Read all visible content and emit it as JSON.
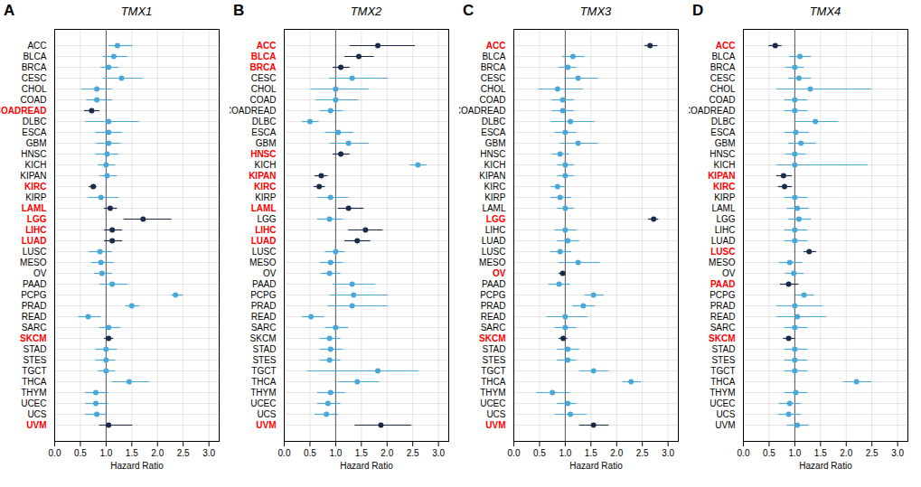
{
  "chart_data": [
    {
      "type": "forest",
      "title": "TMX1",
      "panel_label": "A",
      "x_label": "Hazard Ratio",
      "categories": [
        "ACC",
        "BLCA",
        "BRCA",
        "CESC",
        "CHOL",
        "COAD",
        "COADREAD",
        "DLBC",
        "ESCA",
        "GBM",
        "HNSC",
        "KICH",
        "KIPAN",
        "KIRC",
        "KIRP",
        "LAML",
        "LGG",
        "LIHC",
        "LUAD",
        "LUSC",
        "MESO",
        "OV",
        "PAAD",
        "PCPG",
        "PRAD",
        "READ",
        "SARC",
        "SKCM",
        "STAD",
        "STES",
        "TGCT",
        "THCA",
        "THYM",
        "UCEC",
        "UCS",
        "UVM"
      ],
      "values": [
        1.22,
        1.15,
        1.05,
        1.3,
        0.82,
        0.82,
        0.72,
        1.05,
        1.05,
        1.05,
        1.02,
        1.0,
        1.02,
        0.75,
        0.9,
        1.08,
        1.72,
        1.12,
        1.12,
        0.88,
        0.9,
        0.92,
        1.12,
        2.35,
        1.5,
        0.65,
        1.05,
        1.05,
        1.0,
        1.0,
        1.0,
        1.45,
        0.8,
        0.8,
        0.82,
        1.05
      ],
      "lo": [
        1.05,
        0.95,
        0.9,
        0.95,
        0.52,
        0.62,
        0.58,
        0.6,
        0.8,
        0.82,
        0.8,
        0.85,
        0.88,
        0.67,
        0.65,
        0.97,
        1.35,
        0.97,
        0.97,
        0.67,
        0.72,
        0.77,
        0.88,
        2.28,
        1.38,
        0.47,
        0.87,
        0.97,
        0.8,
        0.8,
        0.85,
        1.12,
        0.6,
        0.6,
        0.6,
        0.87
      ],
      "hi": [
        1.52,
        1.42,
        1.25,
        1.72,
        1.12,
        1.12,
        0.88,
        1.65,
        1.32,
        1.28,
        1.25,
        1.18,
        1.22,
        0.82,
        1.25,
        1.22,
        2.28,
        1.32,
        1.32,
        1.12,
        1.15,
        1.12,
        1.42,
        2.5,
        1.65,
        0.9,
        1.28,
        1.15,
        1.22,
        1.18,
        1.18,
        1.85,
        1.05,
        1.05,
        1.0,
        1.52
      ],
      "colors": [
        "#4aa8d8",
        "#4aa8d8",
        "#4aa8d8",
        "#4aa8d8",
        "#4aa8d8",
        "#4aa8d8",
        "#1a2a4a",
        "#4aa8d8",
        "#4aa8d8",
        "#4aa8d8",
        "#4aa8d8",
        "#4aa8d8",
        "#4aa8d8",
        "#1a2a4a",
        "#4aa8d8",
        "#1a2a4a",
        "#1a2a4a",
        "#1a2a4a",
        "#1a2a4a",
        "#4aa8d8",
        "#4aa8d8",
        "#4aa8d8",
        "#4aa8d8",
        "#4aa8d8",
        "#4aa8d8",
        "#4aa8d8",
        "#4aa8d8",
        "#1a2a4a",
        "#4aa8d8",
        "#4aa8d8",
        "#4aa8d8",
        "#4aa8d8",
        "#4aa8d8",
        "#4aa8d8",
        "#4aa8d8",
        "#1a2a4a"
      ],
      "highlighted": [
        "COADREAD",
        "KIRC",
        "LAML",
        "LGG",
        "LIHC",
        "LUAD",
        "SKCM",
        "UVM"
      ],
      "highlight_color": "red",
      "reference_x": 1.0,
      "xlim": [
        0.0,
        3.2
      ],
      "xticks": [
        {
          "value": 0.0,
          "label": "0.0"
        },
        0.5,
        {
          "value": 1.0,
          "label": "1.0"
        },
        1.5,
        {
          "value": 2.0,
          "label": "2.0"
        },
        2.5,
        {
          "value": 3.0,
          "label": "3.0"
        }
      ],
      "grid": true
    },
    {
      "type": "forest",
      "title": "TMX2",
      "panel_label": "B",
      "x_label": "Hazard Ratio",
      "categories": [
        "ACC",
        "BLCA",
        "BRCA",
        "CESC",
        "CHOL",
        "COAD",
        "COADREAD",
        "DLBC",
        "ESCA",
        "GBM",
        "HNSC",
        "KICH",
        "KIPAN",
        "KIRC",
        "KIRP",
        "LAML",
        "LGG",
        "LIHC",
        "LUAD",
        "LUSC",
        "MESO",
        "OV",
        "PAAD",
        "PCPG",
        "PRAD",
        "READ",
        "SARC",
        "SKCM",
        "STAD",
        "STES",
        "TGCT",
        "THCA",
        "THYM",
        "UCEC",
        "UCS",
        "UVM"
      ],
      "values": [
        1.82,
        1.45,
        1.1,
        1.32,
        1.0,
        1.0,
        0.9,
        0.5,
        1.05,
        1.25,
        1.1,
        2.6,
        0.72,
        0.68,
        0.9,
        1.25,
        0.88,
        1.58,
        1.42,
        1.0,
        0.9,
        0.88,
        1.32,
        1.35,
        1.32,
        0.52,
        1.0,
        0.88,
        0.9,
        0.88,
        1.82,
        1.42,
        0.9,
        0.85,
        0.82,
        1.88
      ],
      "lo": [
        1.28,
        1.18,
        0.95,
        0.88,
        0.52,
        0.62,
        0.7,
        0.35,
        0.8,
        0.9,
        0.95,
        2.45,
        0.6,
        0.58,
        0.65,
        1.05,
        0.65,
        1.25,
        1.18,
        0.8,
        0.7,
        0.72,
        0.95,
        0.9,
        0.85,
        0.35,
        0.8,
        0.7,
        0.7,
        0.7,
        0.45,
        1.05,
        0.65,
        0.65,
        0.6,
        1.38
      ],
      "hi": [
        2.55,
        1.75,
        1.28,
        2.02,
        1.65,
        1.45,
        1.15,
        0.68,
        1.35,
        1.65,
        1.28,
        2.78,
        0.85,
        0.8,
        1.25,
        1.55,
        1.15,
        1.92,
        1.68,
        1.18,
        1.15,
        1.1,
        1.78,
        2.02,
        2.02,
        0.78,
        1.25,
        1.1,
        1.15,
        1.1,
        2.62,
        1.85,
        1.18,
        1.1,
        1.05,
        2.48
      ],
      "colors": [
        "#1a2a4a",
        "#1a2a4a",
        "#1a2a4a",
        "#4aa8d8",
        "#4aa8d8",
        "#4aa8d8",
        "#4aa8d8",
        "#4aa8d8",
        "#4aa8d8",
        "#4aa8d8",
        "#1a2a4a",
        "#4aa8d8",
        "#1a2a4a",
        "#1a2a4a",
        "#4aa8d8",
        "#1a2a4a",
        "#4aa8d8",
        "#1a2a4a",
        "#1a2a4a",
        "#4aa8d8",
        "#4aa8d8",
        "#4aa8d8",
        "#4aa8d8",
        "#4aa8d8",
        "#4aa8d8",
        "#4aa8d8",
        "#4aa8d8",
        "#4aa8d8",
        "#4aa8d8",
        "#4aa8d8",
        "#4aa8d8",
        "#4aa8d8",
        "#4aa8d8",
        "#4aa8d8",
        "#4aa8d8",
        "#1a2a4a"
      ],
      "highlighted": [
        "ACC",
        "BLCA",
        "BRCA",
        "HNSC",
        "KIPAN",
        "KIRC",
        "LAML",
        "LIHC",
        "LUAD",
        "UVM"
      ],
      "highlight_color": "red",
      "reference_x": 1.0,
      "xlim": [
        0.0,
        3.2
      ],
      "xticks": [
        {
          "value": 0.0,
          "label": "0.0"
        },
        0.5,
        {
          "value": 1.0,
          "label": "1.0"
        },
        1.5,
        {
          "value": 2.0,
          "label": "2.0"
        },
        2.5,
        {
          "value": 3.0,
          "label": "3.0"
        }
      ],
      "grid": true
    },
    {
      "type": "forest",
      "title": "TMX3",
      "panel_label": "C",
      "x_label": "Hazard Ratio",
      "categories": [
        "ACC",
        "BLCA",
        "BRCA",
        "CESC",
        "CHOL",
        "COAD",
        "COADREAD",
        "DLBC",
        "ESCA",
        "GBM",
        "HNSC",
        "KICH",
        "KIPAN",
        "KIRC",
        "KIRP",
        "LAML",
        "LGG",
        "LIHC",
        "LUAD",
        "LUSC",
        "MESO",
        "OV",
        "PAAD",
        "PCPG",
        "PRAD",
        "READ",
        "SARC",
        "SKCM",
        "STAD",
        "STES",
        "TGCT",
        "THCA",
        "THYM",
        "UCEC",
        "UCS",
        "UVM"
      ],
      "values": [
        2.65,
        1.15,
        1.05,
        1.25,
        0.85,
        0.95,
        0.95,
        1.1,
        1.0,
        1.25,
        0.9,
        1.0,
        1.0,
        0.85,
        0.9,
        1.0,
        2.72,
        1.0,
        1.05,
        0.9,
        1.25,
        0.95,
        0.88,
        1.55,
        1.35,
        1.0,
        1.0,
        0.96,
        1.05,
        1.05,
        1.55,
        2.28,
        0.75,
        1.05,
        1.1,
        1.55
      ],
      "lo": [
        2.55,
        0.95,
        0.88,
        0.98,
        0.48,
        0.75,
        0.75,
        0.73,
        0.8,
        0.9,
        0.75,
        0.85,
        0.85,
        0.72,
        0.72,
        0.85,
        2.62,
        0.8,
        0.85,
        0.72,
        0.88,
        0.88,
        0.68,
        1.38,
        1.15,
        0.65,
        0.8,
        0.88,
        0.85,
        0.85,
        1.28,
        2.12,
        0.45,
        0.85,
        0.8,
        1.28
      ],
      "hi": [
        2.8,
        1.38,
        1.22,
        1.65,
        1.35,
        1.18,
        1.18,
        1.58,
        1.22,
        1.65,
        1.08,
        1.18,
        1.18,
        1.02,
        1.12,
        1.18,
        2.82,
        1.22,
        1.28,
        1.12,
        1.68,
        1.02,
        1.1,
        1.75,
        1.58,
        1.45,
        1.22,
        1.05,
        1.28,
        1.22,
        1.85,
        2.48,
        1.1,
        1.22,
        1.42,
        1.85
      ],
      "colors": [
        "#1a2a4a",
        "#4aa8d8",
        "#4aa8d8",
        "#4aa8d8",
        "#4aa8d8",
        "#4aa8d8",
        "#4aa8d8",
        "#4aa8d8",
        "#4aa8d8",
        "#4aa8d8",
        "#4aa8d8",
        "#4aa8d8",
        "#4aa8d8",
        "#4aa8d8",
        "#4aa8d8",
        "#4aa8d8",
        "#1a2a4a",
        "#4aa8d8",
        "#4aa8d8",
        "#4aa8d8",
        "#4aa8d8",
        "#1a2a4a",
        "#4aa8d8",
        "#4aa8d8",
        "#4aa8d8",
        "#4aa8d8",
        "#4aa8d8",
        "#1a2a4a",
        "#4aa8d8",
        "#4aa8d8",
        "#4aa8d8",
        "#4aa8d8",
        "#4aa8d8",
        "#4aa8d8",
        "#4aa8d8",
        "#1a2a4a"
      ],
      "highlighted": [
        "ACC",
        "LGG",
        "OV",
        "SKCM",
        "UVM"
      ],
      "highlight_color": "red",
      "reference_x": 1.0,
      "xlim": [
        0.0,
        3.2
      ],
      "xticks": [
        {
          "value": 0.0,
          "label": "0.0"
        },
        0.5,
        {
          "value": 1.0,
          "label": "1.0"
        },
        1.5,
        {
          "value": 2.0,
          "label": "2.0"
        },
        2.5,
        {
          "value": 3.0,
          "label": "3.0"
        }
      ],
      "grid": true
    },
    {
      "type": "forest",
      "title": "TMX4",
      "panel_label": "D",
      "x_label": "Hazard Ratio",
      "categories": [
        "ACC",
        "BLCA",
        "BRCA",
        "CESC",
        "CHOL",
        "COAD",
        "COADREAD",
        "DLBC",
        "ESCA",
        "GBM",
        "HNSC",
        "KICH",
        "KIPAN",
        "KIRC",
        "KIRP",
        "LAML",
        "LGG",
        "LIHC",
        "LUAD",
        "LUSC",
        "MESO",
        "OV",
        "PAAD",
        "PCPG",
        "PRAD",
        "READ",
        "SARC",
        "SKCM",
        "STAD",
        "STES",
        "TGCT",
        "THCA",
        "THYM",
        "UCEC",
        "UCS",
        "UVM"
      ],
      "values": [
        0.62,
        1.1,
        1.0,
        1.08,
        1.3,
        1.0,
        1.0,
        1.4,
        1.02,
        1.12,
        1.0,
        1.0,
        0.78,
        0.8,
        1.0,
        1.05,
        1.08,
        1.0,
        1.0,
        1.28,
        0.9,
        0.98,
        0.88,
        1.18,
        1.0,
        1.05,
        1.0,
        0.88,
        1.0,
        1.0,
        1.0,
        2.2,
        1.02,
        0.9,
        0.88,
        1.05
      ],
      "lo": [
        0.5,
        0.9,
        0.82,
        0.88,
        0.65,
        0.8,
        0.8,
        1.0,
        0.8,
        0.88,
        0.82,
        0.65,
        0.65,
        0.68,
        0.8,
        0.85,
        0.88,
        0.8,
        0.8,
        1.18,
        0.7,
        0.82,
        0.72,
        1.02,
        0.65,
        0.65,
        0.8,
        0.78,
        0.8,
        0.8,
        0.8,
        1.95,
        0.8,
        0.7,
        0.68,
        0.85
      ],
      "hi": [
        0.75,
        1.32,
        1.18,
        1.32,
        2.5,
        1.25,
        1.25,
        1.85,
        1.28,
        1.42,
        1.22,
        2.42,
        0.95,
        0.95,
        1.25,
        1.28,
        1.32,
        1.25,
        1.25,
        1.42,
        1.15,
        1.18,
        1.08,
        1.38,
        1.55,
        1.62,
        1.25,
        1.0,
        1.25,
        1.25,
        1.25,
        2.5,
        1.25,
        1.12,
        1.12,
        1.28
      ],
      "colors": [
        "#1a2a4a",
        "#4aa8d8",
        "#4aa8d8",
        "#4aa8d8",
        "#4aa8d8",
        "#4aa8d8",
        "#4aa8d8",
        "#4aa8d8",
        "#4aa8d8",
        "#4aa8d8",
        "#4aa8d8",
        "#4aa8d8",
        "#1a2a4a",
        "#1a2a4a",
        "#4aa8d8",
        "#4aa8d8",
        "#4aa8d8",
        "#4aa8d8",
        "#4aa8d8",
        "#1a2a4a",
        "#4aa8d8",
        "#4aa8d8",
        "#1a2a4a",
        "#4aa8d8",
        "#4aa8d8",
        "#4aa8d8",
        "#4aa8d8",
        "#1a2a4a",
        "#4aa8d8",
        "#4aa8d8",
        "#4aa8d8",
        "#4aa8d8",
        "#4aa8d8",
        "#4aa8d8",
        "#4aa8d8",
        "#4aa8d8"
      ],
      "highlighted": [
        "ACC",
        "KIPAN",
        "KIRC",
        "LUSC",
        "PAAD",
        "SKCM"
      ],
      "highlight_color": "red",
      "reference_x": 1.0,
      "xlim": [
        0.0,
        3.2
      ],
      "xticks": [
        {
          "value": 0.0,
          "label": "0.0"
        },
        0.5,
        {
          "value": 1.0,
          "label": "1.0"
        },
        1.5,
        {
          "value": 2.0,
          "label": "2.0"
        },
        2.5,
        {
          "value": 3.0,
          "label": "3.0"
        }
      ],
      "grid": true
    }
  ]
}
